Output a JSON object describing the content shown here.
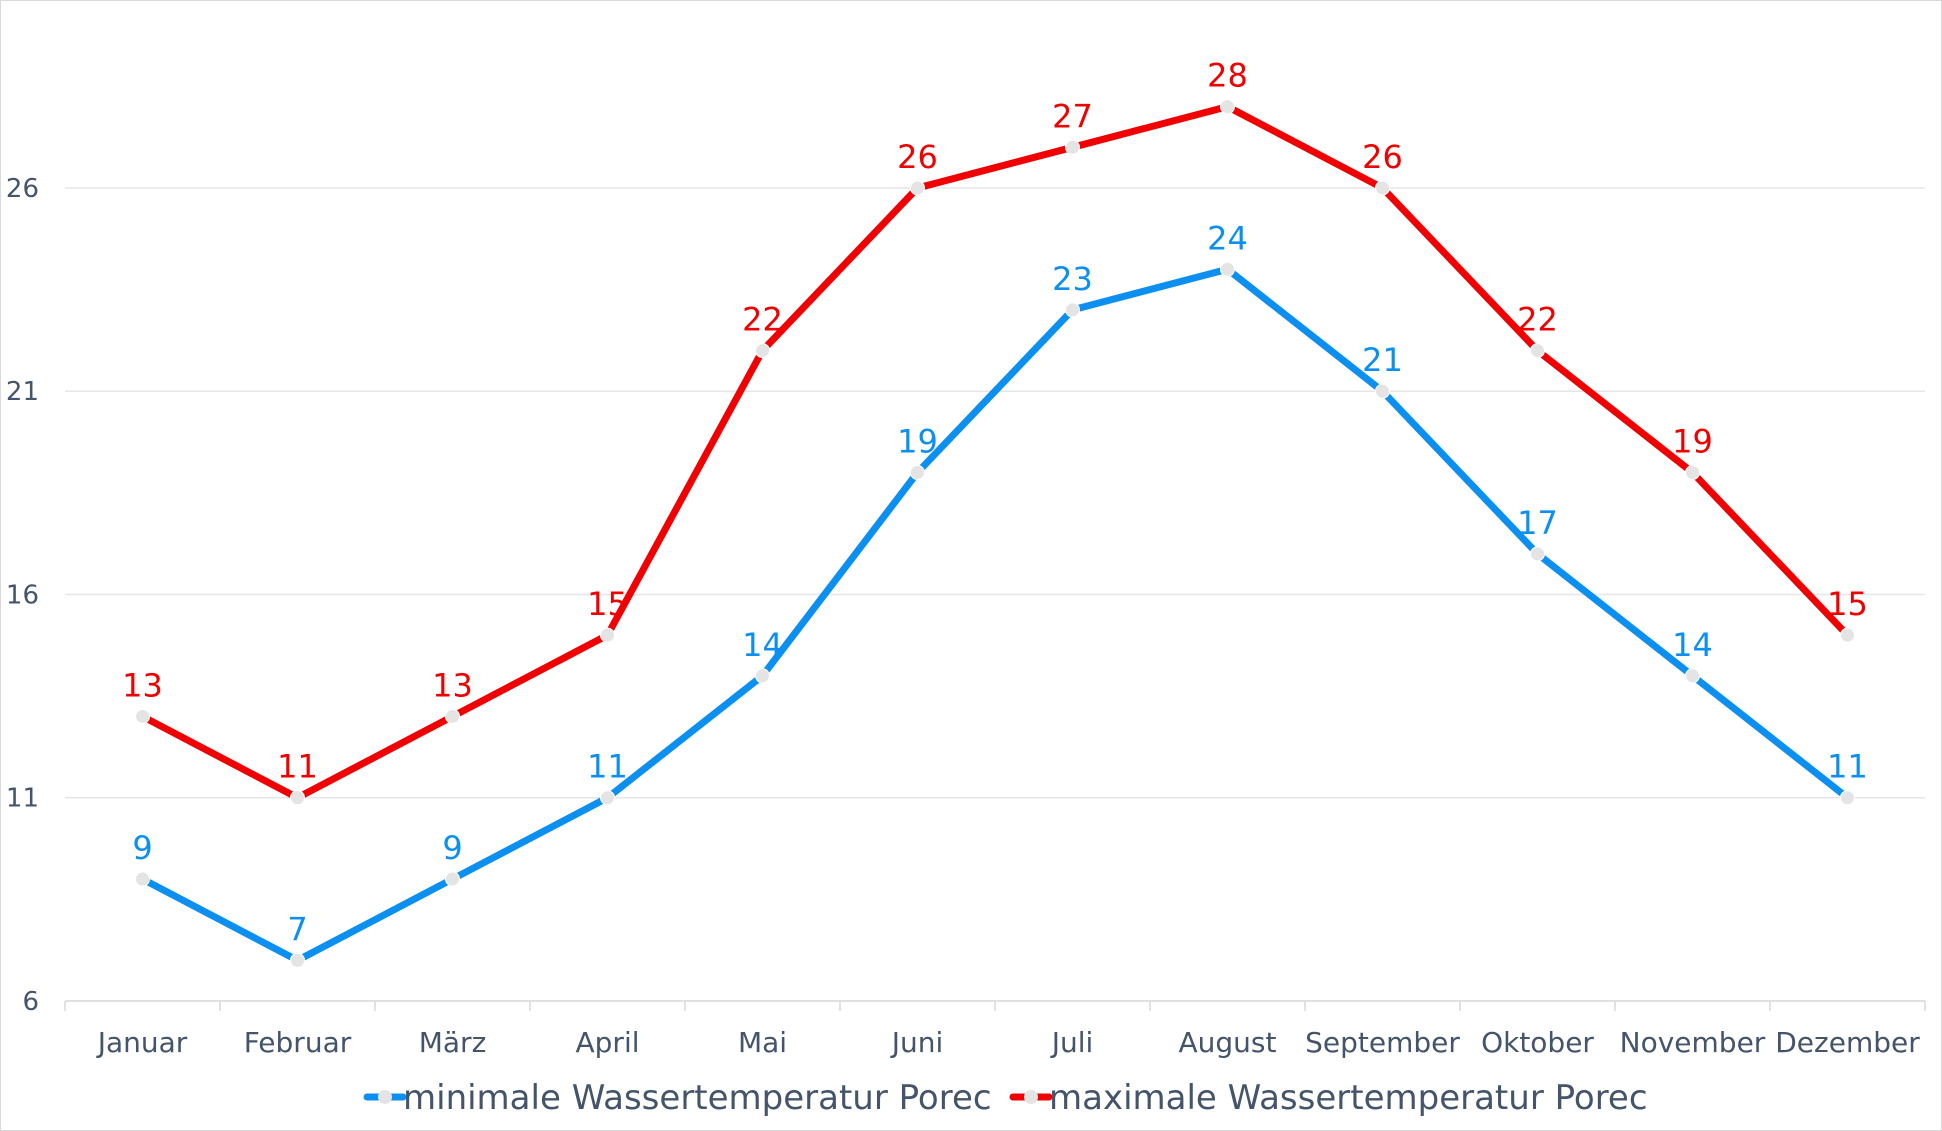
{
  "chart_data": {
    "type": "line",
    "title": "",
    "xlabel": "",
    "ylabel": "",
    "categories": [
      "Januar",
      "Februar",
      "März",
      "April",
      "Mai",
      "Juni",
      "Juli",
      "August",
      "September",
      "Oktober",
      "November",
      "Dezember"
    ],
    "ylim": [
      6,
      29
    ],
    "yticks": [
      6,
      11,
      16,
      21,
      26
    ],
    "grid": true,
    "legend_position": "bottom",
    "series": [
      {
        "name": "minimale Wassertemperatur Porec",
        "color": "#0b8ff0",
        "values": [
          9,
          7,
          9,
          11,
          14,
          19,
          23,
          24,
          21,
          17,
          14,
          11
        ]
      },
      {
        "name": "maximale Wassertemperatur Porec",
        "color": "#f00000",
        "values": [
          13,
          11,
          13,
          15,
          22,
          26,
          27,
          28,
          26,
          22,
          19,
          15
        ]
      }
    ]
  }
}
